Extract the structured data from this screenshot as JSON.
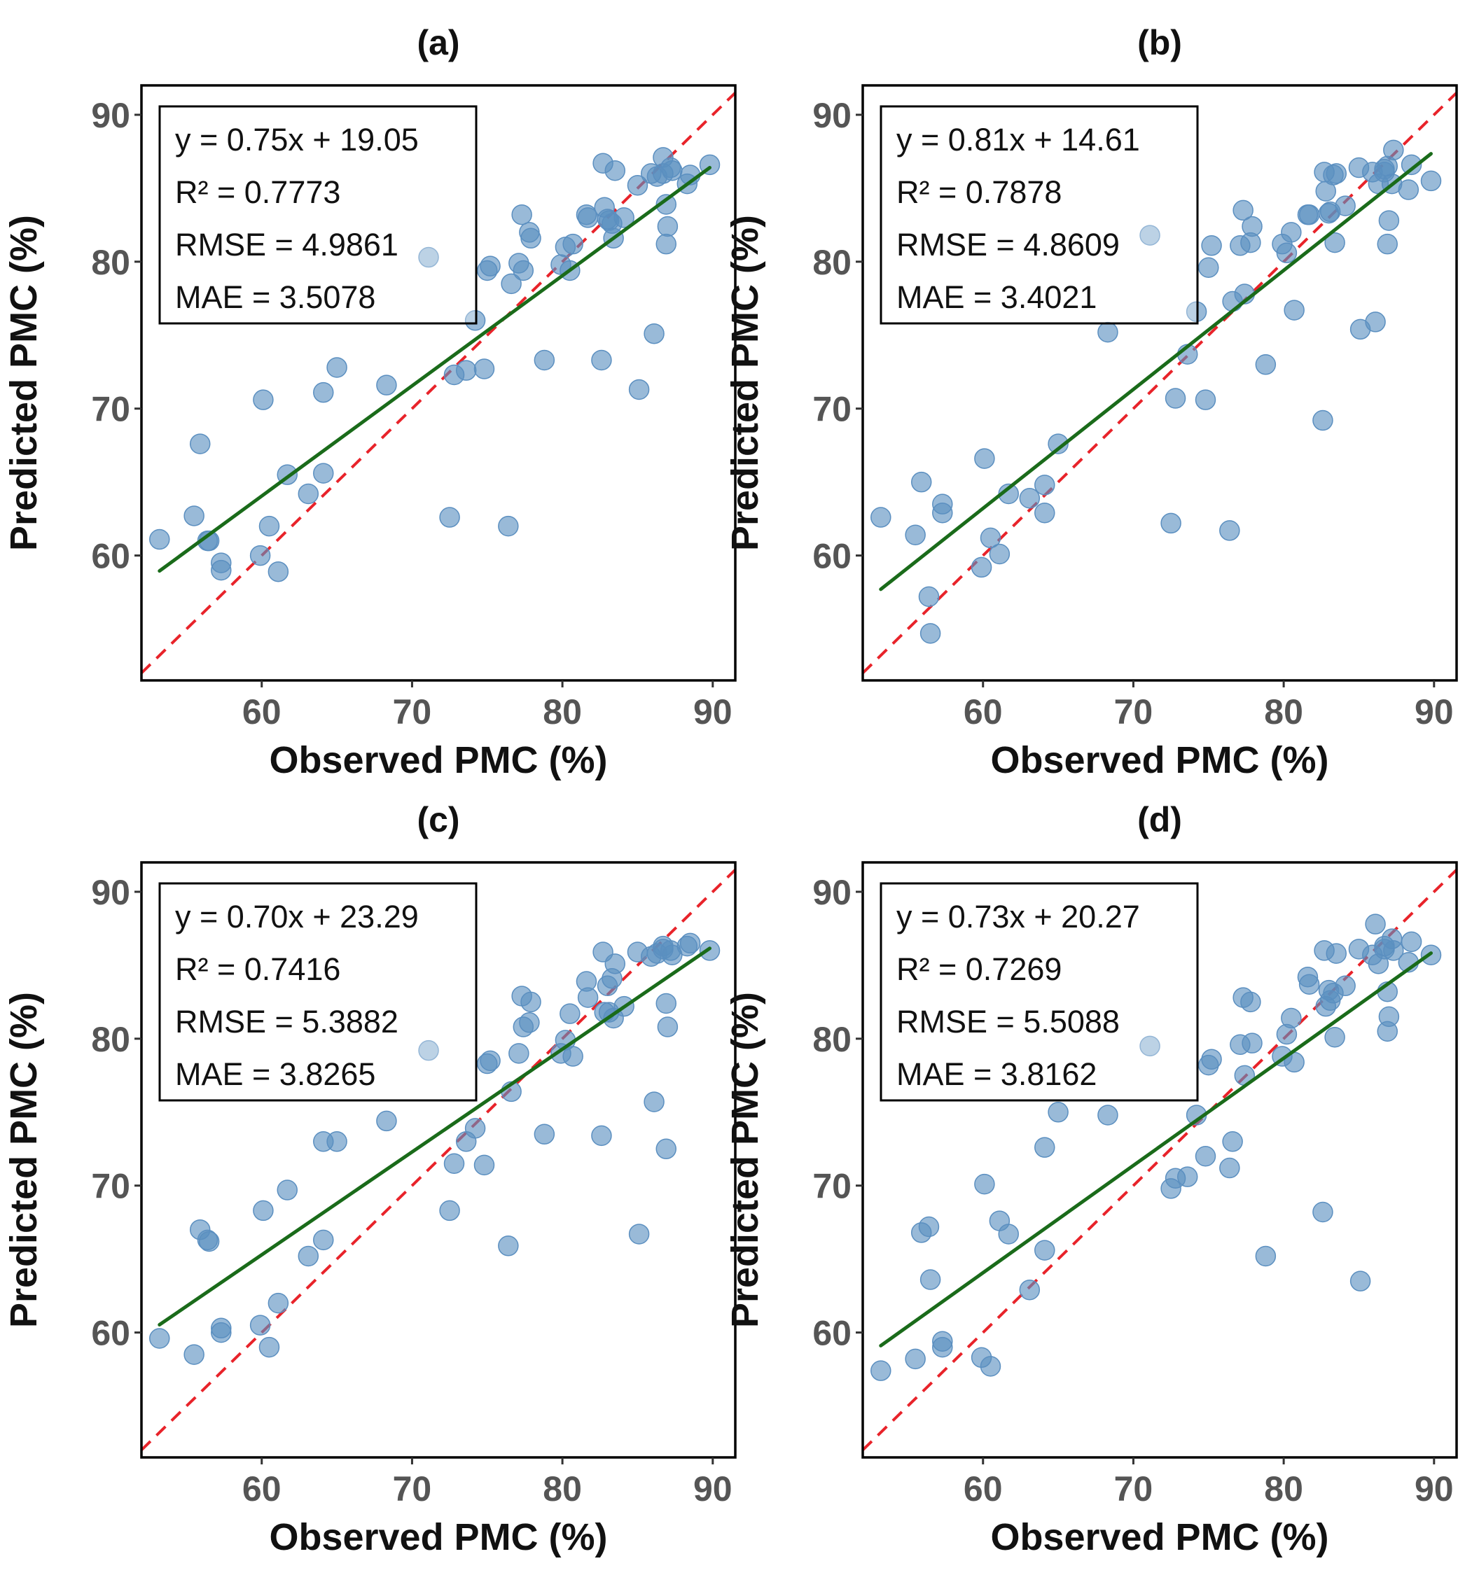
{
  "figure": {
    "x_label": "Observed PMC (%)",
    "y_label": "Predicted PMC (%)",
    "colors": {
      "point": "#5b8fc0",
      "fit": "#1a6b1a",
      "identity": "#e8232a",
      "frame": "#000000"
    }
  },
  "chart_data": [
    {
      "type": "scatter",
      "title": "(a)",
      "xlabel": "Observed PMC (%)",
      "ylabel": "Predicted PMC (%)",
      "xlim": [
        52,
        91.5
      ],
      "ylim": [
        51.5,
        92
      ],
      "xticks": [
        60,
        70,
        80,
        90
      ],
      "yticks": [
        60,
        70,
        80,
        90
      ],
      "x_tick_labels": [
        "60",
        "70",
        "80",
        "90"
      ],
      "y_tick_labels": [
        "60",
        "70",
        "80",
        "90"
      ],
      "fit": {
        "slope": 0.75,
        "intercept": 19.05,
        "x_range": [
          53.2,
          89.8
        ]
      },
      "stats": [
        "y = 0.75x + 19.05",
        "R² = 0.7773",
        "RMSE = 4.9861",
        "MAE = 3.5078"
      ],
      "points": [
        [
          53.2,
          61.1
        ],
        [
          55.5,
          62.7
        ],
        [
          55.9,
          67.6
        ],
        [
          56.4,
          61.0
        ],
        [
          56.5,
          61.0
        ],
        [
          57.3,
          59.5
        ],
        [
          57.3,
          59.0
        ],
        [
          59.9,
          60.0
        ],
        [
          60.1,
          70.6
        ],
        [
          60.5,
          62.0
        ],
        [
          61.1,
          58.9
        ],
        [
          61.7,
          65.5
        ],
        [
          63.1,
          64.2
        ],
        [
          64.1,
          71.1
        ],
        [
          64.1,
          65.6
        ],
        [
          65.0,
          72.8
        ],
        [
          68.3,
          71.6
        ],
        [
          71.1,
          80.3
        ],
        [
          72.5,
          62.6
        ],
        [
          72.8,
          72.3
        ],
        [
          73.6,
          72.6
        ],
        [
          74.2,
          76.0
        ],
        [
          74.8,
          72.7
        ],
        [
          75.0,
          79.4
        ],
        [
          75.2,
          79.7
        ],
        [
          76.4,
          62.0
        ],
        [
          76.6,
          78.5
        ],
        [
          77.1,
          79.9
        ],
        [
          77.3,
          83.2
        ],
        [
          77.4,
          79.4
        ],
        [
          77.8,
          82.0
        ],
        [
          77.9,
          81.6
        ],
        [
          78.8,
          73.3
        ],
        [
          79.9,
          79.8
        ],
        [
          80.2,
          81.0
        ],
        [
          80.5,
          79.4
        ],
        [
          80.7,
          81.2
        ],
        [
          81.6,
          83.2
        ],
        [
          81.7,
          83.0
        ],
        [
          82.6,
          73.3
        ],
        [
          82.7,
          86.7
        ],
        [
          82.8,
          83.7
        ],
        [
          83.0,
          82.9
        ],
        [
          83.1,
          82.8
        ],
        [
          83.3,
          82.6
        ],
        [
          83.4,
          81.6
        ],
        [
          83.5,
          86.2
        ],
        [
          84.1,
          83.0
        ],
        [
          85.0,
          85.2
        ],
        [
          85.1,
          71.3
        ],
        [
          85.9,
          86.0
        ],
        [
          86.1,
          75.1
        ],
        [
          86.3,
          85.8
        ],
        [
          86.7,
          86.0
        ],
        [
          86.7,
          87.1
        ],
        [
          86.9,
          81.2
        ],
        [
          86.9,
          83.9
        ],
        [
          87.0,
          82.4
        ],
        [
          87.2,
          86.4
        ],
        [
          87.3,
          86.2
        ],
        [
          88.3,
          85.3
        ],
        [
          88.5,
          85.9
        ],
        [
          89.8,
          86.6
        ]
      ]
    },
    {
      "type": "scatter",
      "title": "(b)",
      "xlabel": "Observed PMC (%)",
      "ylabel": "Predicted PMC (%)",
      "xlim": [
        52,
        91.5
      ],
      "ylim": [
        51.5,
        92
      ],
      "xticks": [
        60,
        70,
        80,
        90
      ],
      "yticks": [
        60,
        70,
        80,
        90
      ],
      "x_tick_labels": [
        "60",
        "70",
        "80",
        "90"
      ],
      "y_tick_labels": [
        "60",
        "70",
        "80",
        "90"
      ],
      "fit": {
        "slope": 0.81,
        "intercept": 14.61,
        "x_range": [
          53.2,
          89.8
        ]
      },
      "stats": [
        "y = 0.81x + 14.61",
        "R² = 0.7878",
        "RMSE = 4.8609",
        "MAE = 3.4021"
      ],
      "points": [
        [
          53.2,
          62.6
        ],
        [
          55.5,
          61.4
        ],
        [
          55.9,
          65.0
        ],
        [
          56.4,
          57.2
        ],
        [
          56.5,
          54.7
        ],
        [
          57.3,
          63.5
        ],
        [
          57.3,
          62.9
        ],
        [
          59.9,
          59.2
        ],
        [
          60.1,
          66.6
        ],
        [
          60.5,
          61.2
        ],
        [
          61.1,
          60.1
        ],
        [
          61.7,
          64.2
        ],
        [
          63.1,
          63.9
        ],
        [
          64.1,
          64.8
        ],
        [
          64.1,
          62.9
        ],
        [
          65.0,
          67.6
        ],
        [
          68.3,
          75.2
        ],
        [
          71.1,
          81.8
        ],
        [
          72.5,
          62.2
        ],
        [
          72.8,
          70.7
        ],
        [
          73.6,
          73.7
        ],
        [
          74.2,
          76.6
        ],
        [
          74.8,
          70.6
        ],
        [
          75.0,
          79.6
        ],
        [
          75.2,
          81.1
        ],
        [
          76.4,
          61.7
        ],
        [
          76.6,
          77.3
        ],
        [
          77.1,
          81.1
        ],
        [
          77.3,
          83.5
        ],
        [
          77.4,
          77.8
        ],
        [
          77.8,
          81.3
        ],
        [
          77.9,
          82.4
        ],
        [
          78.8,
          73.0
        ],
        [
          79.9,
          81.2
        ],
        [
          80.2,
          80.6
        ],
        [
          80.5,
          82.0
        ],
        [
          80.7,
          76.7
        ],
        [
          81.6,
          83.2
        ],
        [
          81.7,
          83.2
        ],
        [
          82.6,
          69.2
        ],
        [
          82.7,
          86.1
        ],
        [
          82.8,
          84.8
        ],
        [
          83.0,
          83.3
        ],
        [
          83.1,
          83.4
        ],
        [
          83.3,
          85.9
        ],
        [
          83.4,
          81.3
        ],
        [
          83.5,
          86.0
        ],
        [
          84.1,
          83.8
        ],
        [
          85.0,
          86.4
        ],
        [
          85.1,
          75.4
        ],
        [
          85.9,
          86.1
        ],
        [
          86.1,
          75.9
        ],
        [
          86.3,
          85.3
        ],
        [
          86.7,
          86.1
        ],
        [
          86.7,
          86.3
        ],
        [
          86.9,
          81.2
        ],
        [
          86.9,
          86.5
        ],
        [
          87.0,
          82.8
        ],
        [
          87.2,
          85.3
        ],
        [
          87.3,
          87.6
        ],
        [
          88.3,
          84.9
        ],
        [
          88.5,
          86.6
        ],
        [
          89.8,
          85.5
        ]
      ]
    },
    {
      "type": "scatter",
      "title": "(c)",
      "xlabel": "Observed PMC (%)",
      "ylabel": "Predicted PMC (%)",
      "xlim": [
        52,
        91.5
      ],
      "ylim": [
        51.5,
        92
      ],
      "xticks": [
        60,
        70,
        80,
        90
      ],
      "yticks": [
        60,
        70,
        80,
        90
      ],
      "x_tick_labels": [
        "60",
        "70",
        "80",
        "90"
      ],
      "y_tick_labels": [
        "60",
        "70",
        "80",
        "90"
      ],
      "fit": {
        "slope": 0.7,
        "intercept": 23.29,
        "x_range": [
          53.2,
          89.8
        ]
      },
      "stats": [
        "y = 0.70x + 23.29",
        "R² = 0.7416",
        "RMSE = 5.3882",
        "MAE = 3.8265"
      ],
      "points": [
        [
          53.2,
          59.6
        ],
        [
          55.5,
          58.5
        ],
        [
          55.9,
          67.0
        ],
        [
          56.4,
          66.3
        ],
        [
          56.5,
          66.2
        ],
        [
          57.3,
          60.3
        ],
        [
          57.3,
          60.0
        ],
        [
          59.9,
          60.5
        ],
        [
          60.1,
          68.3
        ],
        [
          60.5,
          59.0
        ],
        [
          61.1,
          62.0
        ],
        [
          61.7,
          69.7
        ],
        [
          63.1,
          65.2
        ],
        [
          64.1,
          73.0
        ],
        [
          64.1,
          66.3
        ],
        [
          65.0,
          73.0
        ],
        [
          68.3,
          74.4
        ],
        [
          71.1,
          79.2
        ],
        [
          72.5,
          68.3
        ],
        [
          72.8,
          71.5
        ],
        [
          73.6,
          73.0
        ],
        [
          74.2,
          73.9
        ],
        [
          74.8,
          71.4
        ],
        [
          75.0,
          78.3
        ],
        [
          75.2,
          78.5
        ],
        [
          76.4,
          65.9
        ],
        [
          76.6,
          76.4
        ],
        [
          77.1,
          79.0
        ],
        [
          77.3,
          82.9
        ],
        [
          77.4,
          80.8
        ],
        [
          77.8,
          81.1
        ],
        [
          77.9,
          82.5
        ],
        [
          78.8,
          73.5
        ],
        [
          79.9,
          79.0
        ],
        [
          80.2,
          79.9
        ],
        [
          80.5,
          81.7
        ],
        [
          80.7,
          78.8
        ],
        [
          81.6,
          83.9
        ],
        [
          81.7,
          82.8
        ],
        [
          82.6,
          73.4
        ],
        [
          82.7,
          85.9
        ],
        [
          82.8,
          81.8
        ],
        [
          83.0,
          83.6
        ],
        [
          83.1,
          81.8
        ],
        [
          83.3,
          84.1
        ],
        [
          83.4,
          81.4
        ],
        [
          83.5,
          85.1
        ],
        [
          84.1,
          82.2
        ],
        [
          85.0,
          85.9
        ],
        [
          85.1,
          66.7
        ],
        [
          85.9,
          85.6
        ],
        [
          86.1,
          75.7
        ],
        [
          86.3,
          85.8
        ],
        [
          86.7,
          86.1
        ],
        [
          86.7,
          86.3
        ],
        [
          86.9,
          72.5
        ],
        [
          86.9,
          82.4
        ],
        [
          87.0,
          80.8
        ],
        [
          87.2,
          86.0
        ],
        [
          87.3,
          85.7
        ],
        [
          88.3,
          86.3
        ],
        [
          88.5,
          86.5
        ],
        [
          89.8,
          86.0
        ]
      ]
    },
    {
      "type": "scatter",
      "title": "(d)",
      "xlabel": "Observed PMC (%)",
      "ylabel": "Predicted PMC (%)",
      "xlim": [
        52,
        91.5
      ],
      "ylim": [
        51.5,
        92
      ],
      "xticks": [
        60,
        70,
        80,
        90
      ],
      "yticks": [
        60,
        70,
        80,
        90
      ],
      "x_tick_labels": [
        "60",
        "70",
        "80",
        "90"
      ],
      "y_tick_labels": [
        "60",
        "70",
        "80",
        "90"
      ],
      "fit": {
        "slope": 0.73,
        "intercept": 20.27,
        "x_range": [
          53.2,
          89.8
        ]
      },
      "stats": [
        "y = 0.73x + 20.27",
        "R² = 0.7269",
        "RMSE = 5.5088",
        "MAE = 3.8162"
      ],
      "points": [
        [
          53.2,
          57.4
        ],
        [
          55.5,
          58.2
        ],
        [
          55.9,
          66.8
        ],
        [
          56.4,
          67.2
        ],
        [
          56.5,
          63.6
        ],
        [
          57.3,
          59.4
        ],
        [
          57.3,
          59.0
        ],
        [
          59.9,
          58.3
        ],
        [
          60.1,
          70.1
        ],
        [
          60.5,
          57.7
        ],
        [
          61.1,
          67.6
        ],
        [
          61.7,
          66.7
        ],
        [
          63.1,
          62.9
        ],
        [
          64.1,
          72.6
        ],
        [
          64.1,
          65.6
        ],
        [
          65.0,
          75.0
        ],
        [
          68.3,
          74.8
        ],
        [
          71.1,
          79.5
        ],
        [
          72.5,
          69.8
        ],
        [
          72.8,
          70.5
        ],
        [
          73.6,
          70.6
        ],
        [
          74.2,
          74.8
        ],
        [
          74.8,
          72.0
        ],
        [
          75.0,
          78.2
        ],
        [
          75.2,
          78.6
        ],
        [
          76.4,
          71.2
        ],
        [
          76.6,
          73.0
        ],
        [
          77.1,
          79.6
        ],
        [
          77.3,
          82.8
        ],
        [
          77.4,
          77.5
        ],
        [
          77.8,
          82.5
        ],
        [
          77.9,
          79.7
        ],
        [
          78.8,
          65.2
        ],
        [
          79.9,
          78.8
        ],
        [
          80.2,
          80.3
        ],
        [
          80.5,
          81.4
        ],
        [
          80.7,
          78.4
        ],
        [
          81.6,
          84.2
        ],
        [
          81.7,
          83.7
        ],
        [
          82.6,
          68.2
        ],
        [
          82.7,
          86.0
        ],
        [
          82.8,
          82.2
        ],
        [
          83.0,
          83.3
        ],
        [
          83.1,
          82.6
        ],
        [
          83.3,
          83.1
        ],
        [
          83.4,
          80.1
        ],
        [
          83.5,
          85.8
        ],
        [
          84.1,
          83.6
        ],
        [
          85.0,
          86.1
        ],
        [
          85.1,
          63.5
        ],
        [
          85.9,
          85.7
        ],
        [
          86.1,
          87.8
        ],
        [
          86.3,
          85.1
        ],
        [
          86.7,
          86.1
        ],
        [
          86.7,
          86.3
        ],
        [
          86.9,
          80.5
        ],
        [
          86.9,
          83.2
        ],
        [
          87.0,
          81.5
        ],
        [
          87.2,
          86.8
        ],
        [
          87.3,
          86.0
        ],
        [
          88.3,
          85.2
        ],
        [
          88.5,
          86.6
        ],
        [
          89.8,
          85.7
        ]
      ]
    }
  ]
}
